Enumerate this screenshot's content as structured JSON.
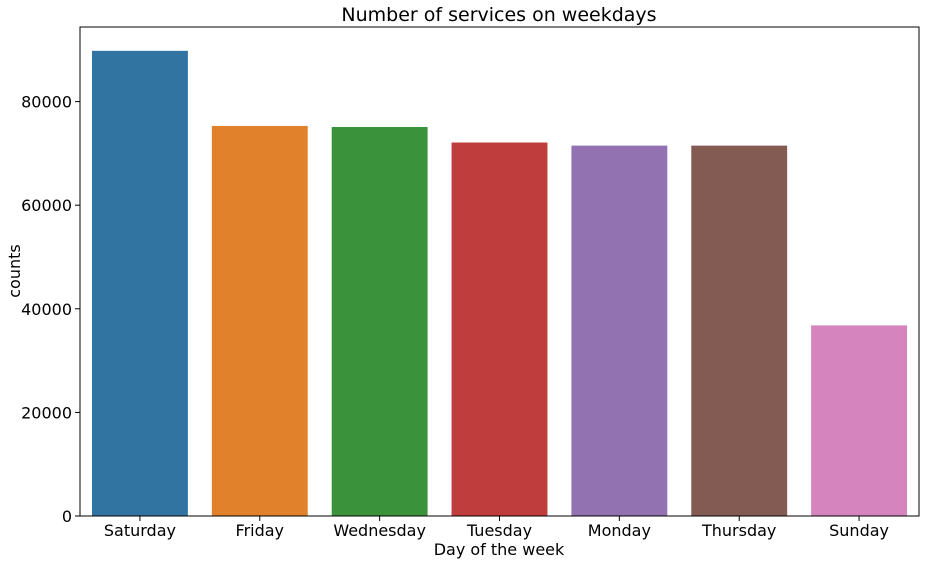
{
  "chart_data": {
    "type": "bar",
    "title": "Number of services on weekdays",
    "xlabel": "Day of the week",
    "ylabel": "counts",
    "categories": [
      "Saturday",
      "Friday",
      "Wednesday",
      "Tuesday",
      "Monday",
      "Thursday",
      "Sunday"
    ],
    "values": [
      89800,
      75300,
      75100,
      72100,
      71500,
      71500,
      36800
    ],
    "colors": [
      "#3274a1",
      "#e1812c",
      "#3a923a",
      "#c03d3e",
      "#9372b2",
      "#845b53",
      "#d684bd"
    ],
    "yticks": [
      0,
      20000,
      40000,
      60000,
      80000
    ],
    "ylim": [
      0,
      94400
    ],
    "grid": false
  }
}
